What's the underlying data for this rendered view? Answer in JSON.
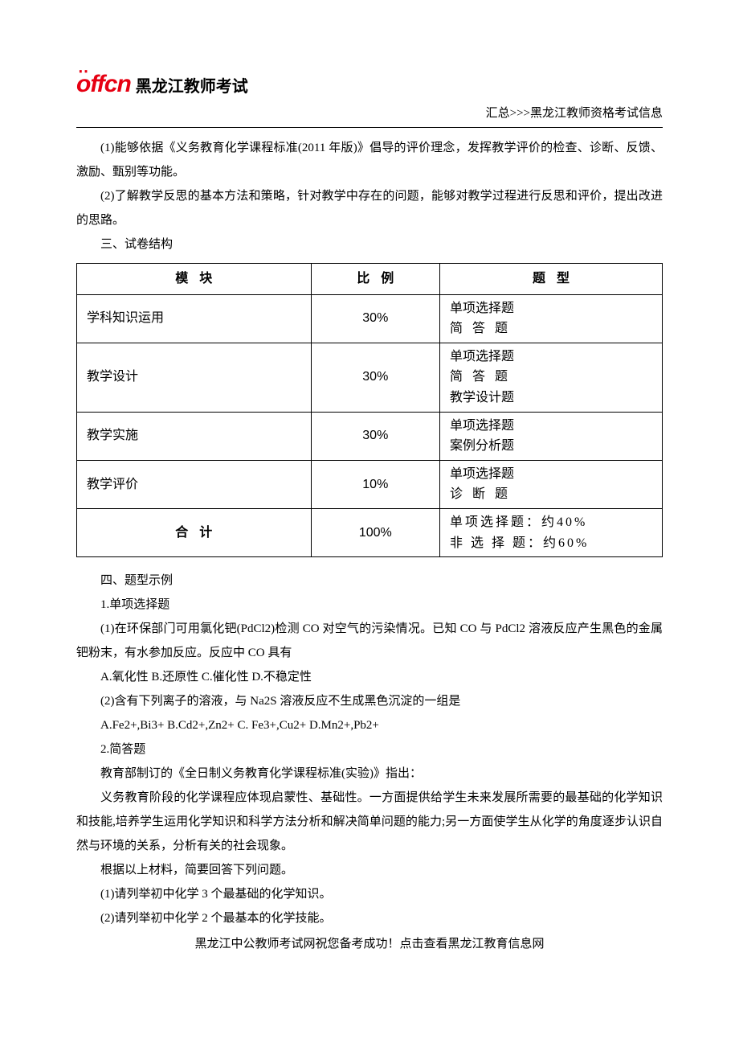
{
  "logo": {
    "brand": "offcn",
    "text": "黑龙江教师考试"
  },
  "header": {
    "right": "汇总>>>黑龙江教师资格考试信息"
  },
  "paras": {
    "p1": "(1)能够依据《义务教育化学课程标准(2011 年版)》倡导的评价理念，发挥教学评价的检查、诊断、反馈、激励、甄别等功能。",
    "p2": "(2)了解教学反思的基本方法和策略，针对教学中存在的问题，能够对教学过程进行反思和评价，提出改进的思路。",
    "s3": "三、试卷结构",
    "s4": "四、题型示例",
    "q1h": "1.单项选择题",
    "q1a": "(1)在环保部门可用氯化钯(PdCl2)检测 CO 对空气的污染情况。已知 CO 与 PdCl2 溶液反应产生黑色的金属钯粉末，有水参加反应。反应中 CO 具有",
    "q1a_opts": "A.氧化性  B.还原性  C.催化性  D.不稳定性",
    "q1b": "(2)含有下列离子的溶液，与 Na2S 溶液反应不生成黑色沉淀的一组是",
    "q1b_opts": "A.Fe2+,Bi3+ B.Cd2+,Zn2+ C. Fe3+,Cu2+ D.Mn2+,Pb2+",
    "q2h": "2.简答题",
    "q2a": "教育部制订的《全日制义务教育化学课程标准(实验)》指出：",
    "q2b": "义务教育阶段的化学课程应体现启蒙性、基础性。一方面提供给学生未来发展所需要的最基础的化学知识和技能,培养学生运用化学知识和科学方法分析和解决简单问题的能力;另一方面使学生从化学的角度逐步认识自然与环境的关系，分析有关的社会现象。",
    "q2c": "根据以上材料，简要回答下列问题。",
    "q2d": "(1)请列举初中化学 3 个最基础的化学知识。",
    "q2e": "(2)请列举初中化学 2 个最基本的化学技能。"
  },
  "table": {
    "headers": {
      "module": "模块",
      "ratio": "比例",
      "qtype": "题型"
    },
    "rows": [
      {
        "module": "学科知识运用",
        "ratio": "30%",
        "qtypes": [
          "单项选择题",
          "简 答 题"
        ]
      },
      {
        "module": "教学设计",
        "ratio": "30%",
        "qtypes": [
          "单项选择题",
          "简 答 题",
          "教学设计题"
        ]
      },
      {
        "module": "教学实施",
        "ratio": "30%",
        "qtypes": [
          "单项选择题",
          "案例分析题"
        ]
      },
      {
        "module": "教学评价",
        "ratio": "10%",
        "qtypes": [
          "单项选择题",
          "诊 断 题"
        ]
      }
    ],
    "total": {
      "module": "合计",
      "ratio": "100%",
      "qtypes": [
        "单项选择题：约40%",
        "非 选 择 题：约60%"
      ]
    }
  },
  "footer": "黑龙江中公教师考试网祝您备考成功！点击查看黑龙江教育信息网",
  "colors": {
    "brand_red": "#e60012",
    "text": "#000000",
    "bg": "#ffffff",
    "border": "#000000"
  }
}
